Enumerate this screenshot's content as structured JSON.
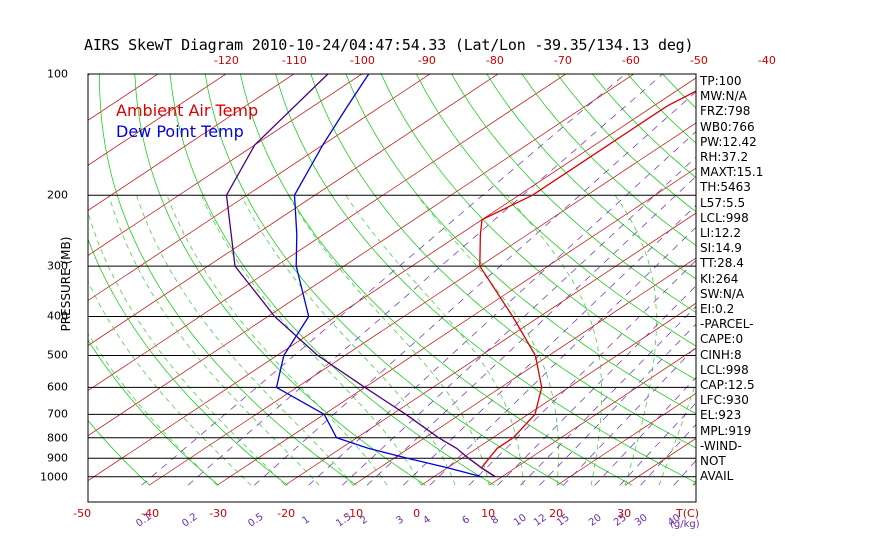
{
  "title": "AIRS SkewT Diagram 2010-10-24/04:47:54.33 (Lat/Lon -39.35/134.13 deg)",
  "legend": {
    "ambient": "Ambient Air Temp",
    "dewpoint": "Dew Point Temp"
  },
  "colors": {
    "ambient": "#dd0000",
    "dewpoint": "#0000dd",
    "parcel": "#4b0082",
    "isotherm": "#cc0000",
    "dry_adiabat": "#00cc00",
    "moist_adiabat": "#33cc33",
    "mixing_ratio": "#6a2ab0",
    "wind_label": "#cc0000"
  },
  "chart_data": {
    "type": "skew-t",
    "title": "AIRS SkewT Diagram 2010-10-24/04:47:54.33 (Lat/Lon -39.35/134.13 deg)",
    "ylabel": "PRESSURE (MB)",
    "xlabel_bottom_unit": "T(C)",
    "mixing_ratio_unit": "(g/kg)",
    "pressure_range_mb": [
      100,
      1050
    ],
    "pressure_levels": [
      100,
      200,
      300,
      400,
      500,
      600,
      700,
      800,
      900,
      1000
    ],
    "top_temperature_ticks": [
      -120,
      -110,
      -100,
      -90,
      -80,
      -70,
      -60,
      -50,
      -40
    ],
    "bottom_temperature_ticks": [
      -50,
      -40,
      -30,
      -20,
      -10,
      0,
      10,
      20,
      30
    ],
    "mixing_ratio_ticks": [
      "0.1",
      "0.2",
      "0.5",
      "1",
      "1.5",
      "2",
      "3",
      "4",
      "6",
      "8",
      "10",
      "12",
      "15",
      "20",
      "25",
      "30",
      "40"
    ],
    "series": [
      {
        "name": "Ambient Air Temp",
        "points": [
          [
            1000,
            9
          ],
          [
            950,
            5
          ],
          [
            900,
            4
          ],
          [
            850,
            3
          ],
          [
            800,
            3
          ],
          [
            700,
            1
          ],
          [
            600,
            -4
          ],
          [
            500,
            -12
          ],
          [
            400,
            -24
          ],
          [
            300,
            -40
          ],
          [
            250,
            -47
          ],
          [
            230,
            -50
          ],
          [
            200,
            -48
          ],
          [
            150,
            -48
          ],
          [
            120,
            -48
          ],
          [
            100,
            -46
          ]
        ]
      },
      {
        "name": "Dew Point Temp",
        "points": [
          [
            1000,
            7
          ],
          [
            950,
            0
          ],
          [
            900,
            -8
          ],
          [
            850,
            -16
          ],
          [
            800,
            -23
          ],
          [
            700,
            -30
          ],
          [
            600,
            -43
          ],
          [
            500,
            -49
          ],
          [
            400,
            -54
          ],
          [
            300,
            -67
          ],
          [
            250,
            -74
          ],
          [
            200,
            -83
          ],
          [
            150,
            -90
          ],
          [
            120,
            -95
          ],
          [
            100,
            -99
          ]
        ]
      },
      {
        "name": "parcel",
        "points": [
          [
            1000,
            9
          ],
          [
            950,
            5
          ],
          [
            900,
            1
          ],
          [
            850,
            -3
          ],
          [
            800,
            -8
          ],
          [
            700,
            -18
          ],
          [
            600,
            -30
          ],
          [
            500,
            -44
          ],
          [
            400,
            -59
          ],
          [
            300,
            -76
          ],
          [
            200,
            -93
          ],
          [
            150,
            -100
          ],
          [
            100,
            -105
          ]
        ]
      }
    ],
    "stats": [
      "TP:100",
      "MW:N/A",
      "FRZ:798",
      "WB0:766",
      "PW:12.42",
      "RH:37.2",
      "MAXT:15.1",
      "TH:5463",
      "L57:5.5",
      "LCL:998",
      "LI:12.2",
      "SI:14.9",
      "TT:28.4",
      "KI:264",
      "SW:N/A",
      "EI:0.2",
      "-PARCEL-",
      "CAPE:0",
      "CINH:8",
      "LCL:998",
      "CAP:12.5",
      "LFC:930",
      "EL:923",
      "MPL:919",
      "-WIND-",
      "NOT",
      "AVAIL"
    ]
  }
}
